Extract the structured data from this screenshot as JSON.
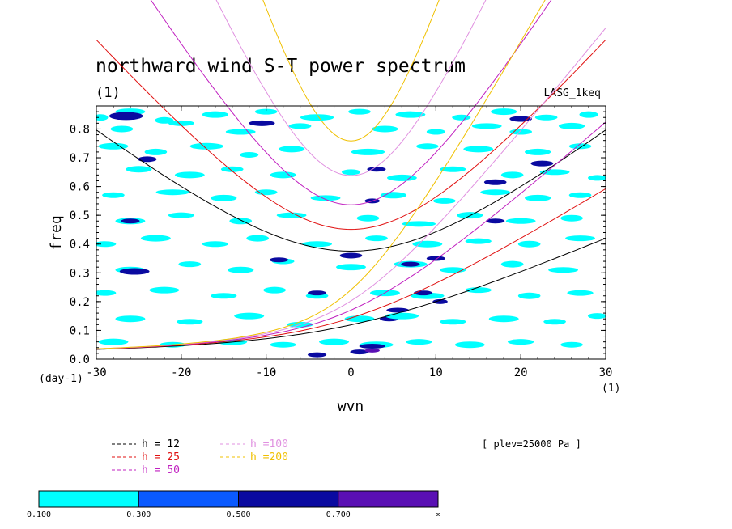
{
  "chart_data": {
    "type": "contour",
    "title": "northward wind S-T power spectrum",
    "subtitle": "(1)",
    "right_label": "LASG_1keq",
    "xlabel": "wvn",
    "ylabel": "freq",
    "x_unit": "(1)",
    "y_unit": "(day-1)",
    "xlim": [
      -30,
      30
    ],
    "ylim": [
      0,
      0.88
    ],
    "xticks": [
      "-30",
      "-20",
      "-10",
      "0",
      "10",
      "20",
      "30"
    ],
    "yticks": [
      "0.0",
      "0.1",
      "0.2",
      "0.3",
      "0.4",
      "0.5",
      "0.6",
      "0.7",
      "0.8"
    ],
    "dispersion_curves": [
      {
        "name": "h = 12",
        "color": "#000000",
        "label_color": "#000000"
      },
      {
        "name": "h = 25",
        "color": "#e01010",
        "label_color": "#e01010"
      },
      {
        "name": "h = 50",
        "color": "#c020c0",
        "label_color": "#c020c0"
      },
      {
        "name": "h =100",
        "color": "#e090e0",
        "label_color": "#e090e0"
      },
      {
        "name": "h =200",
        "color": "#f0c000",
        "label_color": "#f0c000"
      }
    ],
    "annotation": "[ plev=25000 Pa ]",
    "colorbar": {
      "levels": [
        "0.100",
        "0.300",
        "0.500",
        "0.700",
        "∞"
      ],
      "colors": [
        "#00ffff",
        "#0a5aff",
        "#0a0aa0",
        "#5a10b4"
      ]
    },
    "contour_patches": [
      [
        -29.5,
        0.84,
        0.4,
        0.8,
        0
      ],
      [
        -26,
        0.86,
        0.8,
        0.8,
        0
      ],
      [
        -22,
        0.83,
        0.5,
        0.8,
        0
      ],
      [
        -16,
        0.85,
        0.7,
        0.8,
        0
      ],
      [
        -10,
        0.86,
        0.6,
        0.7,
        0
      ],
      [
        -4,
        0.84,
        0.9,
        0.8,
        0
      ],
      [
        1,
        0.86,
        0.6,
        0.7,
        0
      ],
      [
        7,
        0.85,
        0.8,
        0.8,
        0
      ],
      [
        13,
        0.84,
        0.5,
        0.7,
        0
      ],
      [
        18,
        0.86,
        0.7,
        0.8,
        0
      ],
      [
        23,
        0.84,
        0.6,
        0.7,
        0
      ],
      [
        28,
        0.85,
        0.5,
        0.8,
        0
      ],
      [
        -27,
        0.8,
        0.6,
        0.8,
        0
      ],
      [
        -20,
        0.82,
        0.7,
        0.7,
        0
      ],
      [
        -13,
        0.79,
        0.8,
        0.7,
        0
      ],
      [
        -6,
        0.81,
        0.6,
        0.7,
        0
      ],
      [
        4,
        0.8,
        0.7,
        0.8,
        0
      ],
      [
        10,
        0.79,
        0.5,
        0.7,
        0
      ],
      [
        16,
        0.81,
        0.8,
        0.7,
        0
      ],
      [
        20,
        0.79,
        0.6,
        0.7,
        0
      ],
      [
        26,
        0.81,
        0.7,
        0.8,
        0
      ],
      [
        -26.5,
        0.845,
        0.9,
        1.0,
        0.5
      ],
      [
        -10.5,
        0.82,
        0.7,
        0.7,
        0.5
      ],
      [
        20,
        0.835,
        0.6,
        0.7,
        0.5
      ],
      [
        -28,
        0.74,
        0.8,
        0.8,
        0
      ],
      [
        -23,
        0.72,
        0.6,
        0.8,
        0
      ],
      [
        -17,
        0.74,
        0.9,
        0.8,
        0
      ],
      [
        -12,
        0.71,
        0.5,
        0.7,
        0
      ],
      [
        -7,
        0.73,
        0.7,
        0.8,
        0
      ],
      [
        2,
        0.72,
        0.9,
        0.8,
        0
      ],
      [
        9,
        0.74,
        0.6,
        0.7,
        0
      ],
      [
        15,
        0.73,
        0.8,
        0.8,
        0
      ],
      [
        22,
        0.72,
        0.7,
        0.8,
        0
      ],
      [
        27,
        0.74,
        0.6,
        0.7,
        0
      ],
      [
        -24,
        0.695,
        0.5,
        0.7,
        0.5
      ],
      [
        3,
        0.66,
        0.5,
        0.6,
        0.5
      ],
      [
        22.5,
        0.68,
        0.6,
        0.7,
        0.5
      ],
      [
        -25,
        0.66,
        0.7,
        0.8,
        0
      ],
      [
        -19,
        0.64,
        0.8,
        0.8,
        0
      ],
      [
        -14,
        0.66,
        0.6,
        0.7,
        0
      ],
      [
        -8,
        0.64,
        0.7,
        0.8,
        0
      ],
      [
        0,
        0.65,
        0.5,
        0.7,
        0
      ],
      [
        6,
        0.63,
        0.8,
        0.8,
        0
      ],
      [
        12,
        0.66,
        0.7,
        0.7,
        0
      ],
      [
        19,
        0.64,
        0.6,
        0.8,
        0
      ],
      [
        24,
        0.65,
        0.8,
        0.7,
        0
      ],
      [
        29,
        0.63,
        0.5,
        0.7,
        0
      ],
      [
        -28,
        0.57,
        0.6,
        0.7,
        0
      ],
      [
        -21,
        0.58,
        0.9,
        0.7,
        0
      ],
      [
        -15,
        0.56,
        0.7,
        0.8,
        0
      ],
      [
        -10,
        0.58,
        0.6,
        0.7,
        0
      ],
      [
        -3,
        0.56,
        0.8,
        0.7,
        0
      ],
      [
        5,
        0.57,
        0.7,
        0.8,
        0
      ],
      [
        11,
        0.55,
        0.6,
        0.7,
        0
      ],
      [
        17,
        0.58,
        0.8,
        0.7,
        0
      ],
      [
        22,
        0.56,
        0.7,
        0.8,
        0
      ],
      [
        27,
        0.57,
        0.6,
        0.7,
        0
      ],
      [
        17,
        0.615,
        0.6,
        0.7,
        0.5
      ],
      [
        2.5,
        0.55,
        0.4,
        0.6,
        0.5
      ],
      [
        -26,
        0.48,
        0.8,
        0.8,
        0
      ],
      [
        -20,
        0.5,
        0.7,
        0.7,
        0
      ],
      [
        -13,
        0.48,
        0.6,
        0.8,
        0
      ],
      [
        -7,
        0.5,
        0.8,
        0.7,
        0
      ],
      [
        2,
        0.49,
        0.6,
        0.8,
        0
      ],
      [
        8,
        0.47,
        0.9,
        0.7,
        0
      ],
      [
        14,
        0.5,
        0.7,
        0.8,
        0
      ],
      [
        20,
        0.48,
        0.8,
        0.7,
        0
      ],
      [
        26,
        0.49,
        0.6,
        0.8,
        0
      ],
      [
        -26,
        0.48,
        0.5,
        0.6,
        0.5
      ],
      [
        17,
        0.48,
        0.5,
        0.6,
        0.5
      ],
      [
        -29,
        0.4,
        0.6,
        0.7,
        0
      ],
      [
        -23,
        0.42,
        0.8,
        0.8,
        0
      ],
      [
        -16,
        0.4,
        0.7,
        0.7,
        0
      ],
      [
        -11,
        0.42,
        0.6,
        0.8,
        0
      ],
      [
        -4,
        0.4,
        0.8,
        0.7,
        0
      ],
      [
        3,
        0.42,
        0.6,
        0.7,
        0
      ],
      [
        9,
        0.4,
        0.8,
        0.8,
        0
      ],
      [
        15,
        0.41,
        0.7,
        0.7,
        0
      ],
      [
        21,
        0.4,
        0.6,
        0.8,
        0
      ],
      [
        27,
        0.42,
        0.8,
        0.7,
        0
      ],
      [
        -26,
        0.31,
        0.8,
        0.8,
        0
      ],
      [
        -19,
        0.33,
        0.6,
        0.7,
        0
      ],
      [
        -13,
        0.31,
        0.7,
        0.8,
        0
      ],
      [
        -8,
        0.34,
        0.6,
        0.7,
        0
      ],
      [
        0,
        0.32,
        0.8,
        0.8,
        0
      ],
      [
        7,
        0.33,
        0.9,
        0.8,
        0
      ],
      [
        12,
        0.31,
        0.7,
        0.7,
        0
      ],
      [
        19,
        0.33,
        0.6,
        0.8,
        0
      ],
      [
        25,
        0.31,
        0.8,
        0.7,
        0
      ],
      [
        -25.5,
        0.305,
        0.8,
        0.8,
        0.5
      ],
      [
        0,
        0.36,
        0.6,
        0.7,
        0.5
      ],
      [
        7,
        0.33,
        0.5,
        0.6,
        0.5
      ],
      [
        10,
        0.35,
        0.5,
        0.6,
        0.5
      ],
      [
        -8.5,
        0.345,
        0.5,
        0.6,
        0.5
      ],
      [
        -29,
        0.23,
        0.6,
        0.7,
        0
      ],
      [
        -22,
        0.24,
        0.8,
        0.8,
        0
      ],
      [
        -15,
        0.22,
        0.7,
        0.7,
        0
      ],
      [
        -9,
        0.24,
        0.6,
        0.8,
        0
      ],
      [
        -4,
        0.22,
        0.6,
        0.7,
        0
      ],
      [
        4,
        0.23,
        0.8,
        0.8,
        0
      ],
      [
        9,
        0.22,
        0.9,
        0.8,
        0
      ],
      [
        15,
        0.24,
        0.7,
        0.7,
        0
      ],
      [
        21,
        0.22,
        0.6,
        0.8,
        0
      ],
      [
        27,
        0.23,
        0.7,
        0.7,
        0
      ],
      [
        -4,
        0.23,
        0.5,
        0.6,
        0.5
      ],
      [
        5.5,
        0.17,
        0.6,
        0.6,
        0.5
      ],
      [
        8.5,
        0.23,
        0.5,
        0.6,
        0.5
      ],
      [
        10.5,
        0.2,
        0.4,
        0.6,
        0.5
      ],
      [
        4.5,
        0.14,
        0.5,
        0.6,
        0.5
      ],
      [
        -26,
        0.14,
        0.8,
        0.8,
        0
      ],
      [
        -19,
        0.13,
        0.7,
        0.7,
        0
      ],
      [
        -12,
        0.15,
        0.8,
        0.8,
        0
      ],
      [
        -6,
        0.12,
        0.7,
        0.7,
        0
      ],
      [
        1,
        0.14,
        0.8,
        0.8,
        0
      ],
      [
        6,
        0.15,
        0.9,
        0.8,
        0
      ],
      [
        12,
        0.13,
        0.7,
        0.7,
        0
      ],
      [
        18,
        0.14,
        0.8,
        0.8,
        0
      ],
      [
        24,
        0.13,
        0.6,
        0.7,
        0
      ],
      [
        29,
        0.15,
        0.5,
        0.7,
        0
      ],
      [
        -28,
        0.06,
        0.8,
        0.8,
        0
      ],
      [
        -21,
        0.05,
        0.7,
        0.7,
        0
      ],
      [
        -14,
        0.06,
        0.8,
        0.8,
        0
      ],
      [
        -8,
        0.05,
        0.7,
        0.7,
        0
      ],
      [
        -2,
        0.06,
        0.8,
        0.8,
        0
      ],
      [
        3,
        0.05,
        0.9,
        0.8,
        0
      ],
      [
        8,
        0.06,
        0.7,
        0.7,
        0
      ],
      [
        14,
        0.05,
        0.8,
        0.8,
        0
      ],
      [
        20,
        0.06,
        0.7,
        0.7,
        0
      ],
      [
        26,
        0.05,
        0.6,
        0.7,
        0
      ],
      [
        2.5,
        0.045,
        0.7,
        0.6,
        0.5
      ],
      [
        -4,
        0.015,
        0.5,
        0.6,
        0.5
      ],
      [
        1,
        0.025,
        0.5,
        0.6,
        0.5
      ],
      [
        2.5,
        0.03,
        0.4,
        0.5,
        0.7
      ]
    ]
  }
}
